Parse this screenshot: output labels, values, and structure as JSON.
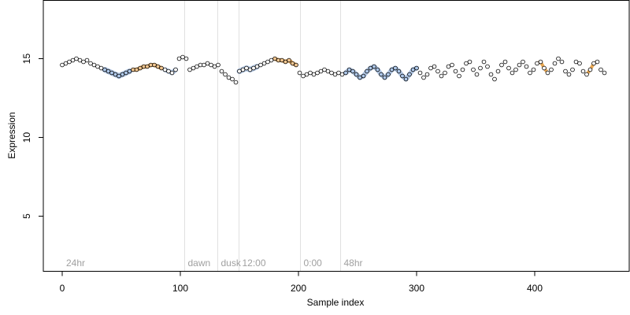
{
  "chart_data": {
    "type": "scatter",
    "title": "",
    "xlabel": "Sample index",
    "ylabel": "Expression",
    "xlim": [
      -16,
      480
    ],
    "ylim": [
      1.5,
      18.7
    ],
    "x_ticks": [
      0,
      100,
      200,
      300,
      400
    ],
    "y_ticks": [
      5,
      10,
      15
    ],
    "grid": false,
    "legend": "none",
    "colors": {
      "point_fill": "#ffffff",
      "point_stroke": "#000000",
      "band_blue": "#a9c0e0",
      "band_orange": "#e8a040",
      "point_orange": "#f2c690",
      "point_blue": "#aec8ea",
      "divider": "#e0e0e0",
      "phase_text": "#a0a0a0"
    },
    "phase_markers": [
      {
        "label": "24hr",
        "x": 2
      },
      {
        "label": "dawn",
        "x": 105
      },
      {
        "label": "dusk",
        "x": 133
      },
      {
        "label": "12:00",
        "x": 151
      },
      {
        "label": "0:00",
        "x": 203
      },
      {
        "label": "48hr",
        "x": 237
      }
    ],
    "series": [
      {
        "x": [
          0,
          3,
          6,
          9,
          12,
          15,
          18,
          21,
          24,
          27,
          30,
          33,
          36,
          39,
          42,
          45,
          48,
          51,
          54,
          57,
          60,
          63,
          66,
          69,
          72,
          75,
          78,
          81,
          84,
          87,
          90,
          93,
          96,
          99,
          102,
          105,
          108,
          111,
          114,
          117,
          120,
          123,
          126,
          129,
          132,
          135,
          138,
          141,
          144,
          147,
          150,
          153,
          156,
          159,
          162,
          165,
          168,
          171,
          174,
          177,
          180,
          183,
          186,
          189,
          192,
          195,
          198,
          201,
          204,
          207,
          210,
          213,
          216,
          219,
          222,
          225,
          228,
          231,
          234,
          237,
          240,
          243,
          246,
          249,
          252,
          255,
          258,
          261,
          264,
          267,
          270,
          273,
          276,
          279,
          282,
          285,
          288,
          291,
          294,
          297,
          300,
          303,
          306,
          309,
          312,
          315,
          318,
          321,
          324,
          327,
          330,
          333,
          336,
          339,
          342,
          345,
          348,
          351,
          354,
          357,
          360,
          363,
          366,
          369,
          372,
          375,
          378,
          381,
          384,
          387,
          390,
          393,
          396,
          399,
          402,
          405,
          408,
          411,
          414,
          417,
          420,
          423,
          426,
          429,
          432,
          435,
          438,
          441,
          444,
          447,
          450,
          453,
          456,
          459
        ],
        "y": [
          14.6,
          14.7,
          14.8,
          14.9,
          15.0,
          14.9,
          14.8,
          14.9,
          14.7,
          14.6,
          14.5,
          14.4,
          14.3,
          14.2,
          14.1,
          14.0,
          13.9,
          14.0,
          14.1,
          14.2,
          14.3,
          14.3,
          14.4,
          14.5,
          14.5,
          14.6,
          14.6,
          14.5,
          14.4,
          14.3,
          14.2,
          14.1,
          14.3,
          15.0,
          15.1,
          15.0,
          14.3,
          14.4,
          14.5,
          14.6,
          14.6,
          14.7,
          14.6,
          14.5,
          14.6,
          14.2,
          14.0,
          13.8,
          13.7,
          13.5,
          14.2,
          14.3,
          14.4,
          14.3,
          14.4,
          14.5,
          14.6,
          14.7,
          14.8,
          14.9,
          15.0,
          14.9,
          14.9,
          14.8,
          14.9,
          14.7,
          14.6,
          14.1,
          13.9,
          14.0,
          14.1,
          14.0,
          14.1,
          14.2,
          14.3,
          14.2,
          14.1,
          14.0,
          14.1,
          14.0,
          14.1,
          14.3,
          14.2,
          14.0,
          13.8,
          13.9,
          14.2,
          14.4,
          14.5,
          14.3,
          14.0,
          13.8,
          14.0,
          14.3,
          14.4,
          14.2,
          13.9,
          13.7,
          14.0,
          14.3,
          14.4,
          14.1,
          13.8,
          14.0,
          14.4,
          14.5,
          14.2,
          13.9,
          14.1,
          14.5,
          14.6,
          14.2,
          13.9,
          14.3,
          14.7,
          14.8,
          14.3,
          14.0,
          14.4,
          14.8,
          14.5,
          14.0,
          13.7,
          14.2,
          14.6,
          14.8,
          14.4,
          14.1,
          14.3,
          14.6,
          14.8,
          14.5,
          14.1,
          14.3,
          14.7,
          14.8,
          14.4,
          14.1,
          14.3,
          14.7,
          15.0,
          14.8,
          14.2,
          14.0,
          14.3,
          14.8,
          14.7,
          14.2,
          14.0,
          14.3,
          14.7,
          14.8,
          14.3,
          14.1
        ]
      }
    ]
  }
}
